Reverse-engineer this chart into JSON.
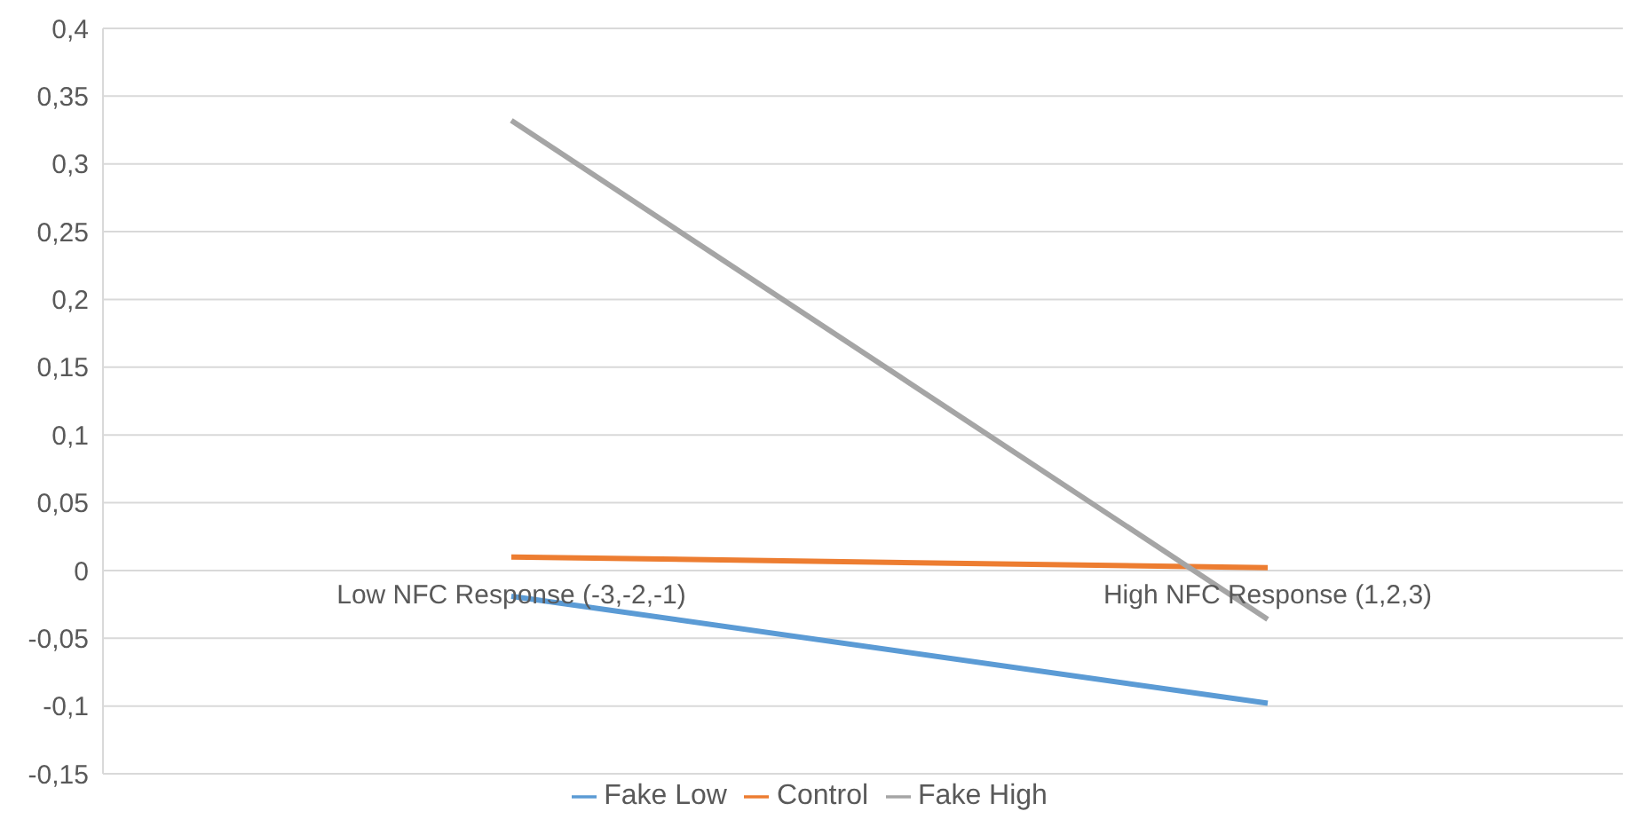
{
  "chart_data": {
    "type": "line",
    "categories": [
      "Low NFC Response (-3,-2,-1)",
      "High NFC Response (1,2,3)"
    ],
    "series": [
      {
        "name": "Fake Low",
        "color": "#5b9bd5",
        "values": [
          -0.019,
          -0.098
        ]
      },
      {
        "name": "Control",
        "color": "#ed7d31",
        "values": [
          0.01,
          0.002
        ]
      },
      {
        "name": "Fake High",
        "color": "#a5a5a5",
        "values": [
          0.332,
          -0.036
        ]
      }
    ],
    "ylim": [
      -0.15,
      0.4
    ],
    "yticks": [
      {
        "value": -0.15,
        "label": "-0,15"
      },
      {
        "value": -0.1,
        "label": "-0,1"
      },
      {
        "value": -0.05,
        "label": "-0,05"
      },
      {
        "value": 0,
        "label": "0"
      },
      {
        "value": 0.05,
        "label": "0,05"
      },
      {
        "value": 0.1,
        "label": "0,1"
      },
      {
        "value": 0.15,
        "label": "0,15"
      },
      {
        "value": 0.2,
        "label": "0,2"
      },
      {
        "value": 0.25,
        "label": "0,25"
      },
      {
        "value": 0.3,
        "label": "0,3"
      },
      {
        "value": 0.35,
        "label": "0,35"
      },
      {
        "value": 0.4,
        "label": "0,4"
      }
    ],
    "grid": "y",
    "legend": "bottom",
    "marker": "none",
    "line_style": "solid"
  }
}
